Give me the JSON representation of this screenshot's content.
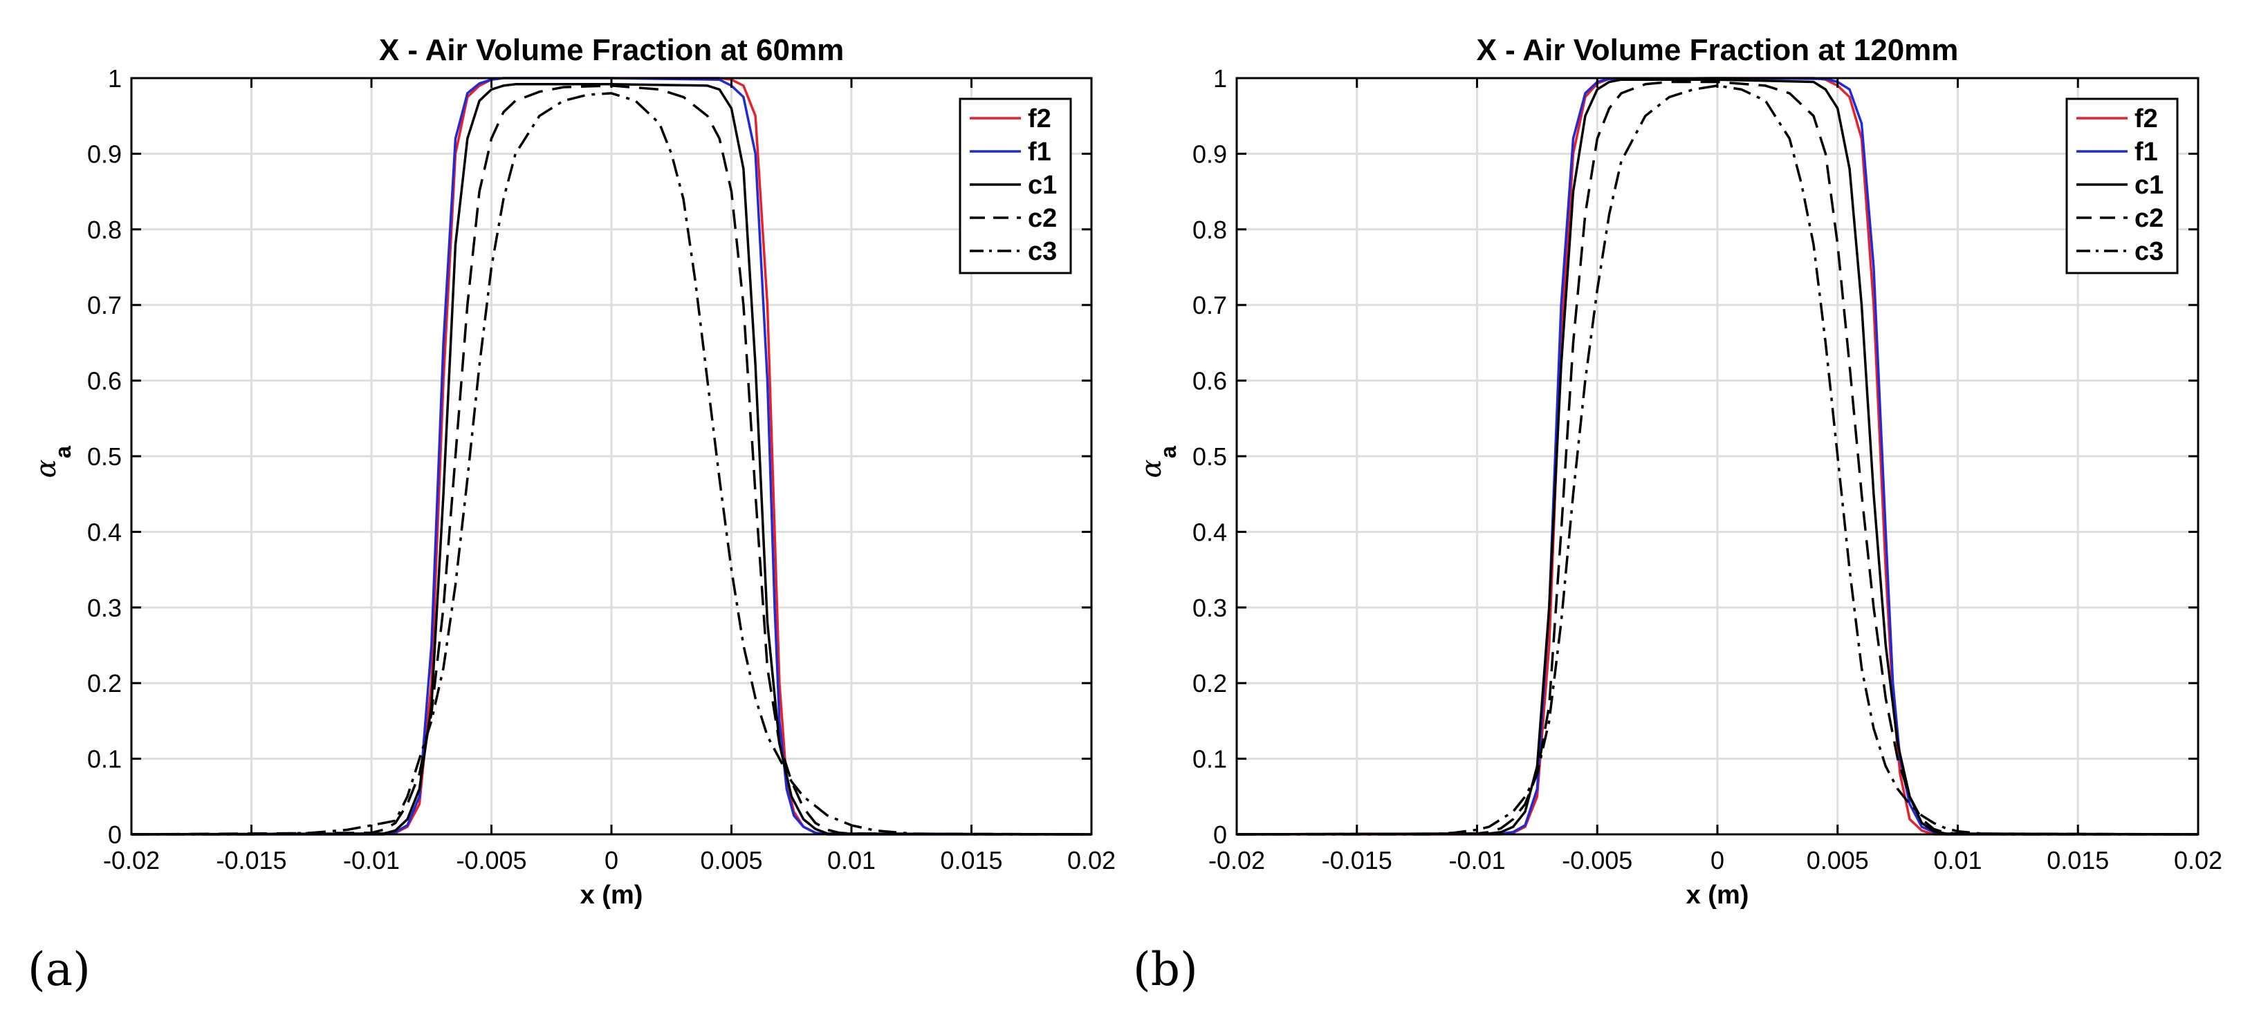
{
  "chart_data": [
    {
      "type": "line",
      "panel_label": "(a)",
      "title": "X - Air Volume Fraction at 60mm",
      "xlabel": "x (m)",
      "ylabel": "α",
      "ylabel_subscript": "a",
      "xlim": [
        -0.02,
        0.02
      ],
      "ylim": [
        0,
        1
      ],
      "xticks": [
        "-0.02",
        "-0.015",
        "-0.01",
        "-0.005",
        "0",
        "0.005",
        "0.01",
        "0.015",
        "0.02"
      ],
      "yticks": [
        "0",
        "0.1",
        "0.2",
        "0.3",
        "0.4",
        "0.5",
        "0.6",
        "0.7",
        "0.8",
        "0.9",
        "1"
      ],
      "grid": true,
      "legend_position": "top-right",
      "series": [
        {
          "name": "f2",
          "color": "#e8202a",
          "dash": "solid",
          "x": [
            -0.02,
            -0.0095,
            -0.009,
            -0.0085,
            -0.008,
            -0.0075,
            -0.007,
            -0.0065,
            -0.006,
            -0.0055,
            -0.005,
            -0.0045,
            0,
            0.0045,
            0.005,
            0.0055,
            0.006,
            0.0065,
            0.0068,
            0.007,
            0.0073,
            0.0076,
            0.008,
            0.0085,
            0.009,
            0.02
          ],
          "y": [
            0,
            0,
            0.002,
            0.01,
            0.04,
            0.2,
            0.6,
            0.9,
            0.975,
            0.99,
            0.998,
            1.0,
            1.0,
            1.0,
            0.998,
            0.99,
            0.95,
            0.7,
            0.4,
            0.2,
            0.07,
            0.03,
            0.01,
            0.002,
            0,
            0
          ]
        },
        {
          "name": "f1",
          "color": "#1f2bd6",
          "dash": "solid",
          "x": [
            -0.02,
            -0.0095,
            -0.009,
            -0.0085,
            -0.008,
            -0.0075,
            -0.007,
            -0.0065,
            -0.006,
            -0.0055,
            -0.005,
            -0.0045,
            0,
            0.0045,
            0.005,
            0.0055,
            0.006,
            0.0065,
            0.0068,
            0.007,
            0.0073,
            0.0076,
            0.008,
            0.0085,
            0.009,
            0.02
          ],
          "y": [
            0,
            0,
            0.003,
            0.012,
            0.05,
            0.25,
            0.65,
            0.92,
            0.98,
            0.993,
            0.998,
            1.0,
            1.0,
            0.998,
            0.99,
            0.975,
            0.9,
            0.6,
            0.3,
            0.15,
            0.06,
            0.025,
            0.01,
            0.002,
            0,
            0
          ]
        },
        {
          "name": "c1",
          "color": "#000000",
          "dash": "solid",
          "x": [
            -0.02,
            -0.0095,
            -0.009,
            -0.0085,
            -0.008,
            -0.0075,
            -0.007,
            -0.0065,
            -0.006,
            -0.0055,
            -0.005,
            -0.0045,
            -0.004,
            0,
            0.004,
            0.0045,
            0.005,
            0.0055,
            0.006,
            0.0065,
            0.007,
            0.0075,
            0.008,
            0.0085,
            0.009,
            0.02
          ],
          "y": [
            0,
            0.001,
            0.005,
            0.02,
            0.06,
            0.17,
            0.45,
            0.78,
            0.92,
            0.97,
            0.985,
            0.99,
            0.992,
            0.992,
            0.99,
            0.985,
            0.96,
            0.88,
            0.62,
            0.28,
            0.12,
            0.05,
            0.02,
            0.007,
            0.001,
            0
          ]
        },
        {
          "name": "c2",
          "color": "#000000",
          "dash": "dashed",
          "x": [
            -0.02,
            -0.01,
            -0.0095,
            -0.009,
            -0.0085,
            -0.008,
            -0.0075,
            -0.007,
            -0.0065,
            -0.006,
            -0.0055,
            -0.005,
            -0.0045,
            -0.004,
            -0.003,
            -0.002,
            0,
            0.002,
            0.003,
            0.004,
            0.0045,
            0.005,
            0.0055,
            0.006,
            0.0065,
            0.007,
            0.0075,
            0.008,
            0.0085,
            0.009,
            0.0095,
            0.01,
            0.02
          ],
          "y": [
            0,
            0.002,
            0.006,
            0.015,
            0.04,
            0.08,
            0.16,
            0.3,
            0.5,
            0.7,
            0.85,
            0.92,
            0.955,
            0.97,
            0.982,
            0.988,
            0.99,
            0.985,
            0.975,
            0.95,
            0.92,
            0.85,
            0.7,
            0.45,
            0.22,
            0.12,
            0.07,
            0.035,
            0.015,
            0.006,
            0.002,
            0.001,
            0
          ]
        },
        {
          "name": "c3",
          "color": "#000000",
          "dash": "dashdot",
          "x": [
            -0.02,
            -0.015,
            -0.0125,
            -0.011,
            -0.01,
            -0.0095,
            -0.009,
            -0.0085,
            -0.008,
            -0.0075,
            -0.007,
            -0.0065,
            -0.006,
            -0.0055,
            -0.005,
            -0.0045,
            -0.004,
            -0.003,
            -0.002,
            -0.001,
            0,
            0.001,
            0.002,
            0.0025,
            0.003,
            0.0035,
            0.004,
            0.0045,
            0.005,
            0.0055,
            0.006,
            0.0065,
            0.007,
            0.0075,
            0.008,
            0.009,
            0.01,
            0.011,
            0.0125,
            0.015,
            0.02
          ],
          "y": [
            0,
            0,
            0.002,
            0.006,
            0.012,
            0.015,
            0.018,
            0.05,
            0.1,
            0.15,
            0.22,
            0.33,
            0.47,
            0.62,
            0.75,
            0.84,
            0.9,
            0.95,
            0.97,
            0.978,
            0.98,
            0.97,
            0.94,
            0.9,
            0.84,
            0.73,
            0.6,
            0.47,
            0.35,
            0.25,
            0.18,
            0.13,
            0.1,
            0.07,
            0.05,
            0.025,
            0.012,
            0.005,
            0.001,
            0,
            0
          ]
        }
      ]
    },
    {
      "type": "line",
      "panel_label": "(b)",
      "title": "X - Air Volume Fraction at 120mm",
      "xlabel": "x (m)",
      "ylabel": "α",
      "ylabel_subscript": "a",
      "xlim": [
        -0.02,
        0.02
      ],
      "ylim": [
        0,
        1
      ],
      "xticks": [
        "-0.02",
        "-0.015",
        "-0.01",
        "-0.005",
        "0",
        "0.005",
        "0.01",
        "0.015",
        "0.02"
      ],
      "yticks": [
        "0",
        "0.1",
        "0.2",
        "0.3",
        "0.4",
        "0.5",
        "0.6",
        "0.7",
        "0.8",
        "0.9",
        "1"
      ],
      "grid": true,
      "legend_position": "top-right",
      "series": [
        {
          "name": "f2",
          "color": "#e8202a",
          "dash": "solid",
          "x": [
            -0.02,
            -0.009,
            -0.0085,
            -0.008,
            -0.0075,
            -0.007,
            -0.0065,
            -0.006,
            -0.0055,
            -0.005,
            -0.0045,
            0,
            0.004,
            0.0045,
            0.005,
            0.0055,
            0.006,
            0.0065,
            0.007,
            0.0073,
            0.0076,
            0.008,
            0.0085,
            0.009,
            0.02
          ],
          "y": [
            0,
            0,
            0.002,
            0.01,
            0.05,
            0.25,
            0.65,
            0.9,
            0.975,
            0.993,
            0.999,
            1.0,
            1.0,
            0.998,
            0.99,
            0.975,
            0.92,
            0.7,
            0.35,
            0.18,
            0.08,
            0.02,
            0.005,
            0,
            0
          ]
        },
        {
          "name": "f1",
          "color": "#1f2bd6",
          "dash": "solid",
          "x": [
            -0.02,
            -0.009,
            -0.0085,
            -0.008,
            -0.0075,
            -0.007,
            -0.0065,
            -0.006,
            -0.0055,
            -0.005,
            -0.0045,
            0,
            0.0045,
            0.005,
            0.0055,
            0.006,
            0.0065,
            0.007,
            0.0073,
            0.0076,
            0.008,
            0.0085,
            0.009,
            0.0095,
            0.02
          ],
          "y": [
            0,
            0.001,
            0.003,
            0.012,
            0.06,
            0.3,
            0.7,
            0.92,
            0.98,
            0.995,
            0.999,
            1.0,
            0.999,
            0.995,
            0.985,
            0.94,
            0.75,
            0.4,
            0.2,
            0.1,
            0.04,
            0.01,
            0.003,
            0,
            0
          ]
        },
        {
          "name": "c1",
          "color": "#000000",
          "dash": "solid",
          "x": [
            -0.02,
            -0.0095,
            -0.009,
            -0.0085,
            -0.008,
            -0.0075,
            -0.007,
            -0.0065,
            -0.006,
            -0.0055,
            -0.005,
            -0.0045,
            -0.004,
            0,
            0.004,
            0.0045,
            0.005,
            0.0055,
            0.006,
            0.0065,
            0.007,
            0.0075,
            0.008,
            0.0085,
            0.009,
            0.0095,
            0.02
          ],
          "y": [
            0,
            0.001,
            0.003,
            0.01,
            0.03,
            0.09,
            0.3,
            0.62,
            0.85,
            0.95,
            0.985,
            0.995,
            0.998,
            0.998,
            0.995,
            0.985,
            0.96,
            0.88,
            0.7,
            0.45,
            0.25,
            0.12,
            0.05,
            0.015,
            0.004,
            0.001,
            0
          ]
        },
        {
          "name": "c2",
          "color": "#000000",
          "dash": "dashed",
          "x": [
            -0.02,
            -0.01,
            -0.0095,
            -0.009,
            -0.0085,
            -0.008,
            -0.0075,
            -0.007,
            -0.0065,
            -0.006,
            -0.0055,
            -0.005,
            -0.0045,
            -0.004,
            -0.003,
            -0.002,
            0,
            0.002,
            0.003,
            0.004,
            0.0045,
            0.005,
            0.0055,
            0.006,
            0.0065,
            0.007,
            0.0075,
            0.008,
            0.0085,
            0.009,
            0.0095,
            0.01,
            0.02
          ],
          "y": [
            0,
            0.001,
            0.003,
            0.008,
            0.02,
            0.04,
            0.08,
            0.17,
            0.4,
            0.65,
            0.82,
            0.92,
            0.96,
            0.98,
            0.992,
            0.995,
            0.995,
            0.99,
            0.98,
            0.95,
            0.9,
            0.78,
            0.62,
            0.45,
            0.3,
            0.18,
            0.1,
            0.05,
            0.02,
            0.007,
            0.002,
            0.001,
            0
          ]
        },
        {
          "name": "c3",
          "color": "#000000",
          "dash": "dashdot",
          "x": [
            -0.02,
            -0.012,
            -0.011,
            -0.01,
            -0.0095,
            -0.009,
            -0.0085,
            -0.008,
            -0.0075,
            -0.007,
            -0.0065,
            -0.006,
            -0.0055,
            -0.005,
            -0.0045,
            -0.004,
            -0.003,
            -0.002,
            -0.001,
            0,
            0.001,
            0.002,
            0.003,
            0.0035,
            0.004,
            0.0045,
            0.005,
            0.0055,
            0.006,
            0.0065,
            0.007,
            0.0075,
            0.008,
            0.0085,
            0.009,
            0.0095,
            0.01,
            0.011,
            0.012,
            0.02
          ],
          "y": [
            0,
            0,
            0.002,
            0.006,
            0.01,
            0.02,
            0.03,
            0.05,
            0.08,
            0.15,
            0.28,
            0.45,
            0.6,
            0.72,
            0.82,
            0.89,
            0.95,
            0.975,
            0.985,
            0.99,
            0.985,
            0.97,
            0.92,
            0.86,
            0.78,
            0.65,
            0.5,
            0.35,
            0.22,
            0.14,
            0.09,
            0.06,
            0.04,
            0.025,
            0.015,
            0.008,
            0.004,
            0.001,
            0,
            0
          ]
        }
      ]
    }
  ]
}
